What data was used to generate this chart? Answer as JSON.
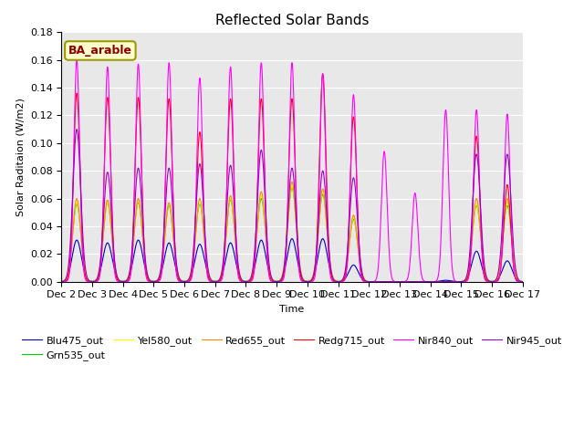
{
  "title": "Reflected Solar Bands",
  "xlabel": "Time",
  "ylabel": "Solar Raditaion (W/m2)",
  "annotation": "BA_arable",
  "ylim": [
    0,
    0.18
  ],
  "yticks": [
    0.0,
    0.02,
    0.04,
    0.06,
    0.08,
    0.1,
    0.12,
    0.14,
    0.16,
    0.18
  ],
  "xtick_labels": [
    "Dec 2",
    "Dec 3",
    "Dec 4",
    "Dec 5",
    "Dec 6",
    "Dec 7",
    "Dec 8",
    "Dec 9",
    "Dec 10",
    "Dec 11",
    "Dec 12",
    "Dec 13",
    "Dec 14",
    "Dec 15",
    "Dec 16",
    "Dec 17"
  ],
  "series": [
    {
      "name": "Blu475_out",
      "color": "#0000cc"
    },
    {
      "name": "Grn535_out",
      "color": "#00cc00"
    },
    {
      "name": "Yel580_out",
      "color": "#ffff00"
    },
    {
      "name": "Red655_out",
      "color": "#ff8800"
    },
    {
      "name": "Redg715_out",
      "color": "#ff0000"
    },
    {
      "name": "Nir840_out",
      "color": "#ff00ff"
    },
    {
      "name": "Nir945_out",
      "color": "#9900cc"
    }
  ],
  "peak_days": [
    1,
    2,
    3,
    4,
    5,
    6,
    7,
    8,
    9,
    10,
    11,
    12,
    13,
    14,
    15
  ],
  "peak_heights_Blu": [
    0.03,
    0.028,
    0.03,
    0.028,
    0.027,
    0.028,
    0.03,
    0.031,
    0.031,
    0.012,
    0.0,
    0.0,
    0.001,
    0.022,
    0.015
  ],
  "peak_heights_Grn": [
    0.056,
    0.057,
    0.057,
    0.055,
    0.056,
    0.059,
    0.06,
    0.068,
    0.063,
    0.045,
    0.0,
    0.0,
    0.0,
    0.055,
    0.055
  ],
  "peak_heights_Yel": [
    0.057,
    0.057,
    0.058,
    0.056,
    0.057,
    0.06,
    0.062,
    0.069,
    0.065,
    0.046,
    0.0,
    0.0,
    0.0,
    0.056,
    0.057
  ],
  "peak_heights_Red": [
    0.06,
    0.059,
    0.06,
    0.057,
    0.06,
    0.062,
    0.065,
    0.072,
    0.067,
    0.048,
    0.0,
    0.0,
    0.0,
    0.06,
    0.06
  ],
  "peak_heights_Redg": [
    0.136,
    0.133,
    0.133,
    0.132,
    0.108,
    0.132,
    0.132,
    0.132,
    0.15,
    0.119,
    0.0,
    0.0,
    0.0,
    0.105,
    0.07
  ],
  "peak_heights_Nir8": [
    0.16,
    0.155,
    0.157,
    0.158,
    0.147,
    0.155,
    0.158,
    0.158,
    0.15,
    0.135,
    0.094,
    0.064,
    0.124,
    0.124,
    0.121
  ],
  "peak_heights_Nir9": [
    0.11,
    0.079,
    0.082,
    0.082,
    0.085,
    0.084,
    0.095,
    0.082,
    0.08,
    0.075,
    0.0,
    0.0,
    0.0,
    0.092,
    0.092
  ],
  "background_color": "#e8e8e8",
  "fig_background": "#ffffff",
  "legend_fontsize": 8,
  "title_fontsize": 11,
  "label_fontsize": 8,
  "tick_fontsize": 8
}
